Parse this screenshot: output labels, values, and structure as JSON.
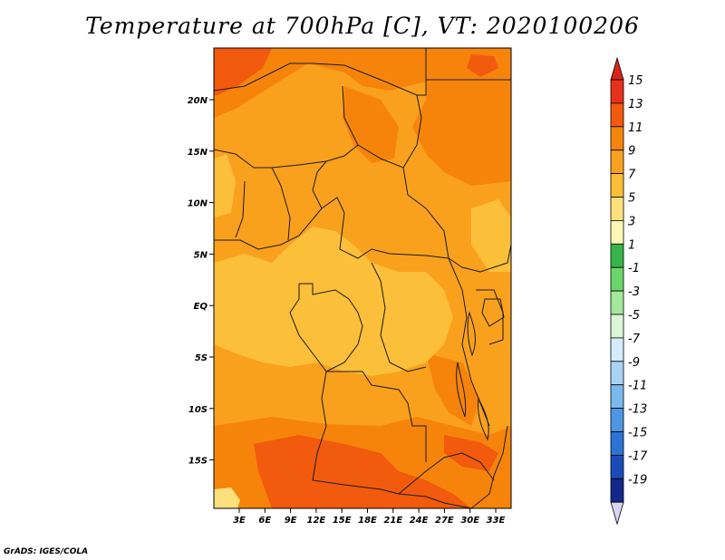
{
  "title": "Temperature at 700hPa [C], VT: 2020100206",
  "credit": "GrADS: IGES/COLA",
  "lat_labels": [
    "20N",
    "15N",
    "10N",
    "5N",
    "EQ",
    "5S",
    "10S",
    "15S"
  ],
  "lon_labels": [
    "3E",
    "6E",
    "9E",
    "12E",
    "15E",
    "18E",
    "21E",
    "24E",
    "27E",
    "30E",
    "33E"
  ],
  "colorbar": {
    "labels": [
      "15",
      "13",
      "11",
      "9",
      "7",
      "5",
      "3",
      "1",
      "-1",
      "-3",
      "-5",
      "-7",
      "-9",
      "-11",
      "-13",
      "-15",
      "-17",
      "-19"
    ],
    "colors": [
      "#e8301c",
      "#f25a0e",
      "#f6840b",
      "#f9a11d",
      "#fbbf3a",
      "#fde07c",
      "#fdf7b6",
      "#36b44a",
      "#6cd56a",
      "#a3e89c",
      "#daf6d6",
      "#d6ecfb",
      "#a9d3f4",
      "#7bb8ec",
      "#4d96e3",
      "#2d73d6",
      "#1a4cb8",
      "#13288a"
    ],
    "top_arrow_color": "#d7251a",
    "bottom_arrow_color": "#d9d3f4"
  },
  "map_colors": {
    "background": "#f9a11d",
    "warm": "#f6840b",
    "hot": "#f25a0e",
    "cool": "#fbbf3a",
    "coolest": "#fde07c",
    "border": "#1a1a1a"
  }
}
